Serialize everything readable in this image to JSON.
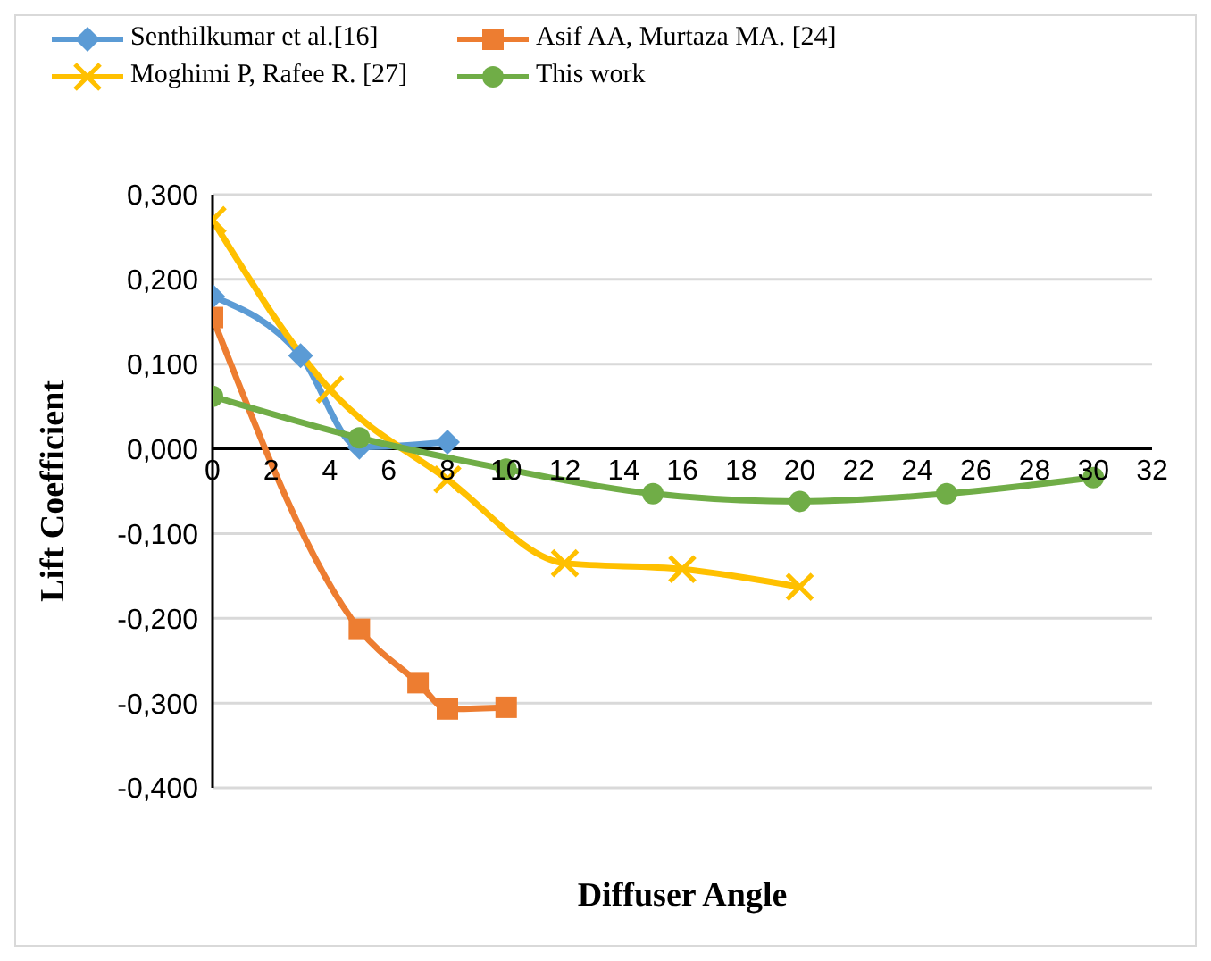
{
  "chart_data": {
    "type": "line",
    "xlabel": "Diffuser Angle",
    "ylabel": "Lift Coefficient",
    "xlim": [
      0,
      32
    ],
    "xticks": [
      0,
      2,
      4,
      6,
      8,
      10,
      12,
      14,
      16,
      18,
      20,
      22,
      24,
      26,
      28,
      30,
      32
    ],
    "ylim": [
      -0.4,
      0.3
    ],
    "yticks": [
      {
        "value": -0.4,
        "label": "-0,400"
      },
      {
        "value": -0.3,
        "label": "-0,300"
      },
      {
        "value": -0.2,
        "label": "-0,200"
      },
      {
        "value": -0.1,
        "label": "-0,100"
      },
      {
        "value": 0,
        "label": "0,000"
      },
      {
        "value": 0.1,
        "label": "0,100"
      },
      {
        "value": 0.2,
        "label": "0,200"
      },
      {
        "value": 0.3,
        "label": "0,300"
      }
    ],
    "grid": "y",
    "legend": "top",
    "series": [
      {
        "name": "Senthilkumar et al.[16]",
        "color": "#5b9bd5",
        "marker": "diamond",
        "x": [
          0,
          3,
          5,
          8
        ],
        "values": [
          0.18,
          0.11,
          0.002,
          0.008
        ]
      },
      {
        "name": "Asif AA, Murtaza MA. [24]",
        "color": "#ed7d31",
        "marker": "square",
        "x": [
          0,
          5,
          7,
          8,
          10
        ],
        "values": [
          0.155,
          -0.213,
          -0.276,
          -0.307,
          -0.305
        ]
      },
      {
        "name": "Moghimi P, Rafee R. [27]",
        "color": "#ffc000",
        "marker": "cross",
        "x": [
          0,
          4,
          8,
          12,
          16,
          20
        ],
        "values": [
          0.27,
          0.07,
          -0.036,
          -0.135,
          -0.142,
          -0.163
        ]
      },
      {
        "name": "This work",
        "color": "#70ad47",
        "marker": "circle",
        "x": [
          0,
          5,
          10,
          15,
          20,
          25,
          30
        ],
        "values": [
          0.062,
          0.013,
          -0.024,
          -0.053,
          -0.062,
          -0.053,
          -0.034
        ]
      }
    ]
  }
}
